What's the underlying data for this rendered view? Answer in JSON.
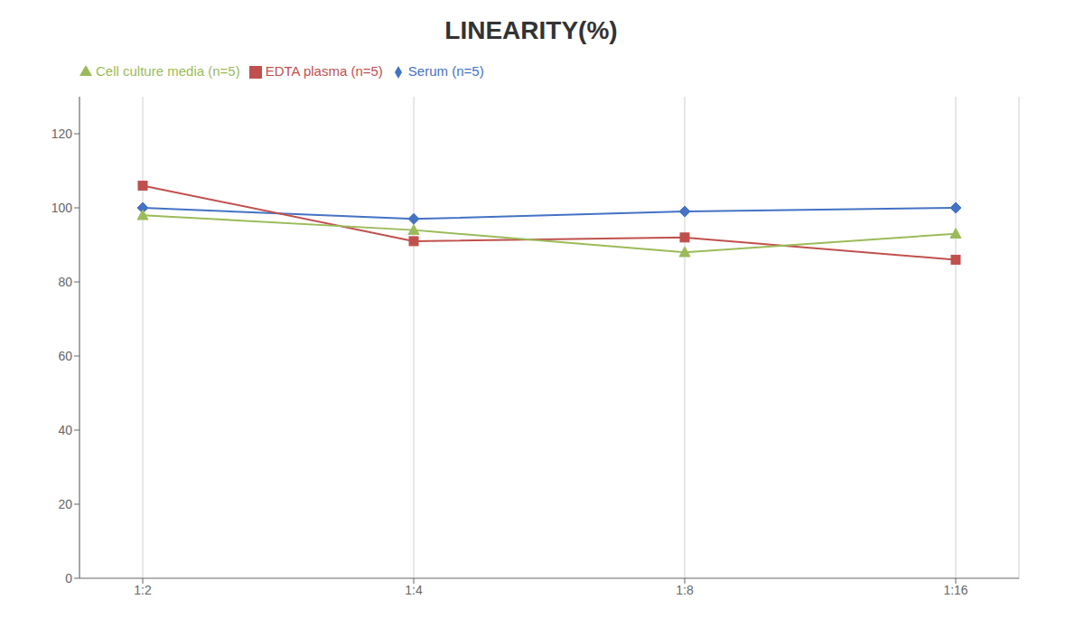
{
  "chart_data": {
    "type": "line",
    "title": "LINEARITY(%)",
    "categories": [
      "1:2",
      "1:4",
      "1:8",
      "1:16"
    ],
    "series": [
      {
        "name": "Serum (n=5)",
        "color": "#4472C4",
        "marker": "diamond",
        "values": [
          100,
          97,
          99,
          100
        ]
      },
      {
        "name": "EDTA plasma (n=5)",
        "color": "#C0504D",
        "marker": "square",
        "values": [
          106,
          91,
          92,
          86
        ]
      },
      {
        "name": "Cell culture media (n=5)",
        "color": "#9BBB59",
        "marker": "triangle",
        "values": [
          98,
          94,
          88,
          93
        ]
      }
    ],
    "ylim": [
      0,
      130
    ],
    "yticks": [
      0,
      20,
      40,
      60,
      80,
      100,
      120
    ],
    "grid": "x",
    "legend": "upper left"
  }
}
